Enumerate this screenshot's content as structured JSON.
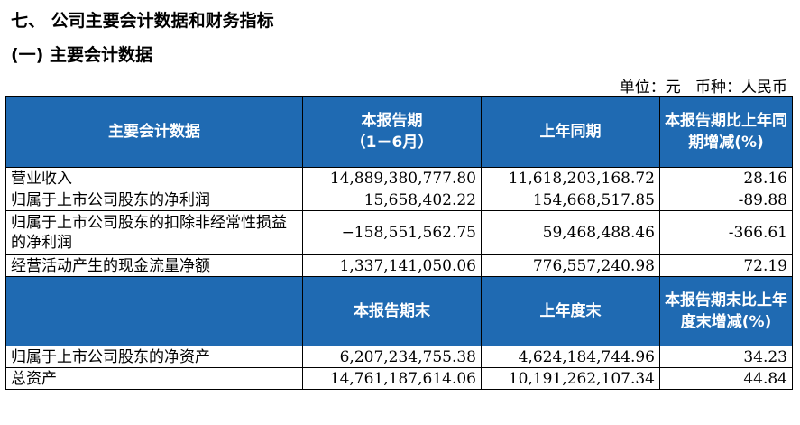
{
  "section_title": "七、 公司主要会计数据和财务指标",
  "subsection_title": "(一) 主要会计数据",
  "unit_line": "单位：元   币种：人民币",
  "header1": {
    "col1": "主要会计数据",
    "col2_line1": "本报告期",
    "col2_line2": "（1－6月）",
    "col3": "上年同期",
    "col4": "本报告期比上年同期增减(%)"
  },
  "rows1": [
    {
      "label": "营业收入",
      "current": "14,889,380,777.80",
      "prior": "11,618,203,168.72",
      "change": "28.16"
    },
    {
      "label": "归属于上市公司股东的净利润",
      "current": "15,658,402.22",
      "prior": "154,668,517.85",
      "change": "-89.88"
    },
    {
      "label": "归属于上市公司股东的扣除非经常性损益的净利润",
      "current": "−158,551,562.75",
      "prior": "59,468,488.46",
      "change": "-366.61"
    },
    {
      "label": "经营活动产生的现金流量净额",
      "current": "1,337,141,050.06",
      "prior": "776,557,240.98",
      "change": "72.19"
    }
  ],
  "header2": {
    "col2": "本报告期末",
    "col3": "上年度末",
    "col4": "本报告期末比上年度末增减(%)"
  },
  "rows2": [
    {
      "label": "归属于上市公司股东的净资产",
      "current": "6,207,234,755.38",
      "prior": "4,624,184,744.96",
      "change": "34.23"
    },
    {
      "label": "总资产",
      "current": "14,761,187,614.06",
      "prior": "10,191,262,107.34",
      "change": "44.84"
    }
  ]
}
